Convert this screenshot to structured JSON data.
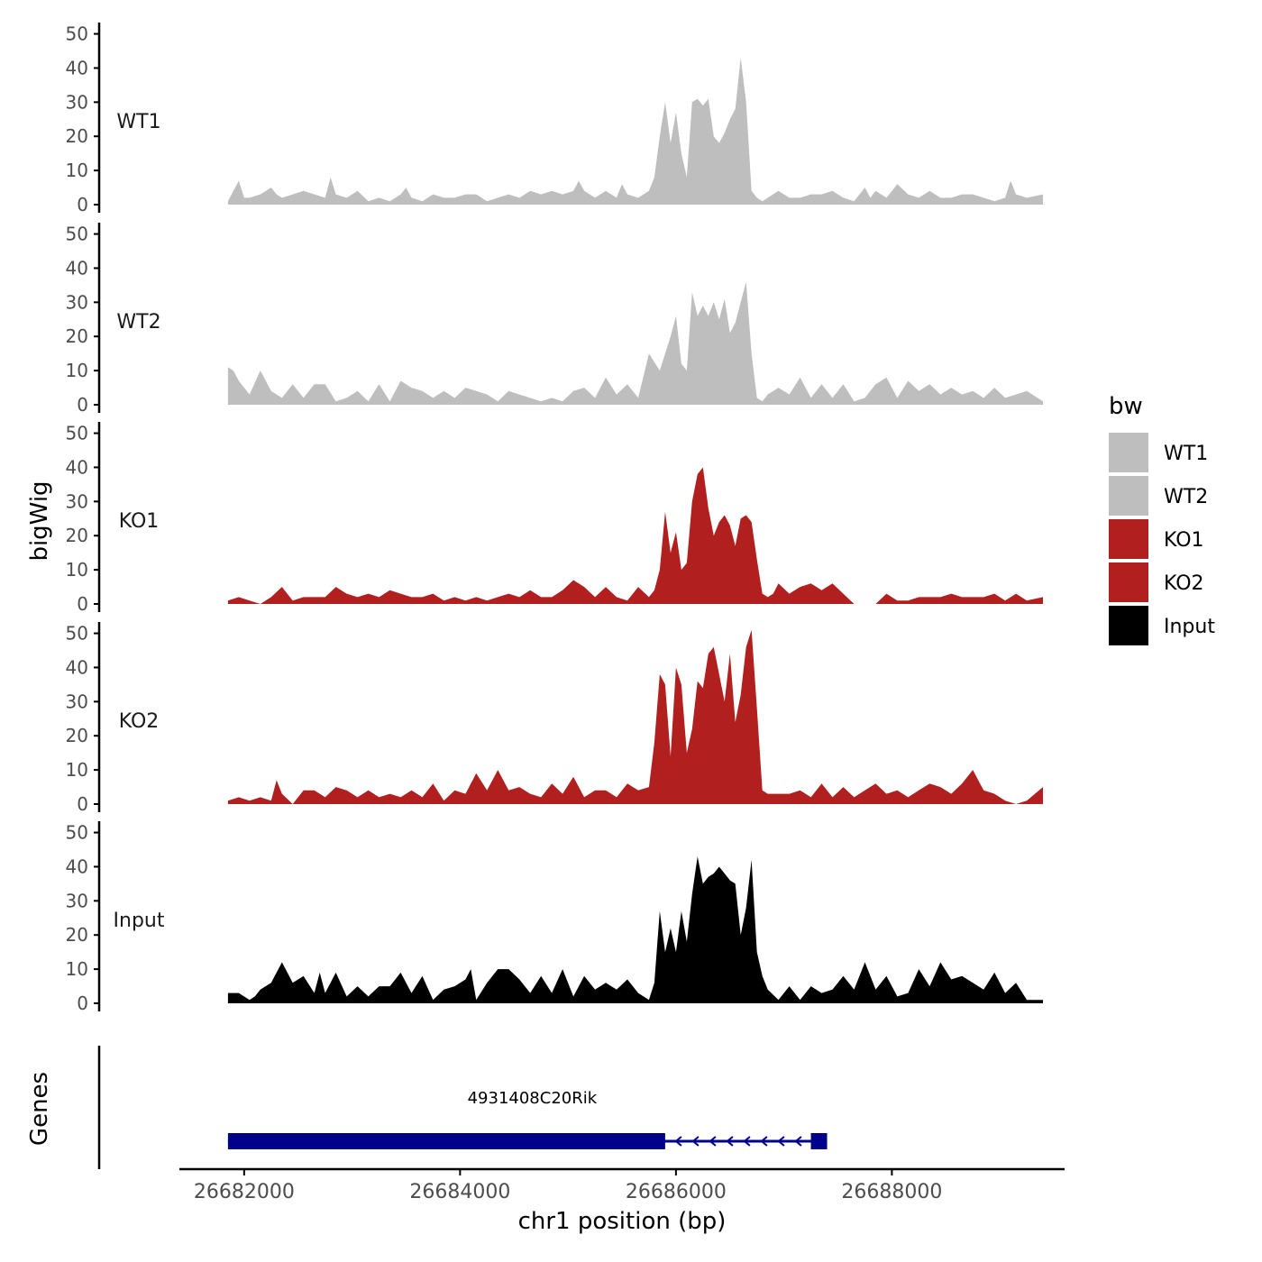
{
  "chart_data": {
    "type": "area",
    "title": "",
    "ylabel": "bigWig",
    "xlabel": "chr1 position (bp)",
    "genes_label": "Genes",
    "xlim": [
      26681400,
      26689600
    ],
    "ylim": [
      0,
      52
    ],
    "yticks": [
      0,
      10,
      20,
      30,
      40,
      50
    ],
    "ytick_labels": [
      "0",
      "10",
      "20",
      "30",
      "40",
      "50"
    ],
    "xticks": [
      26682000,
      26684000,
      26686000,
      26688000
    ],
    "xtick_labels": [
      "26682000",
      "26684000",
      "26686000",
      "26688000"
    ],
    "legend": {
      "title": "bw",
      "position": "right",
      "entries": [
        {
          "label": "WT1",
          "color": "#BEBEBE"
        },
        {
          "label": "WT2",
          "color": "#BEBEBE"
        },
        {
          "label": "KO1",
          "color": "#B21F1F"
        },
        {
          "label": "KO2",
          "color": "#B21F1F"
        },
        {
          "label": "Input",
          "color": "#000000"
        }
      ]
    },
    "series": [
      {
        "name": "WT1",
        "label": "WT1",
        "color": "#BEBEBE",
        "x": [
          26681850,
          26681950,
          26682000,
          26682050,
          26682150,
          26682250,
          26682300,
          26682350,
          26682450,
          26682550,
          26682650,
          26682750,
          26682800,
          26682850,
          26682950,
          26683050,
          26683150,
          26683250,
          26683350,
          26683450,
          26683500,
          26683550,
          26683650,
          26683750,
          26683850,
          26683950,
          26684050,
          26684150,
          26684250,
          26684350,
          26684450,
          26684550,
          26684650,
          26684750,
          26684850,
          26684950,
          26685050,
          26685100,
          26685150,
          26685250,
          26685350,
          26685450,
          26685500,
          26685550,
          26685650,
          26685750,
          26685800,
          26685850,
          26685900,
          26685950,
          26686000,
          26686050,
          26686100,
          26686150,
          26686200,
          26686250,
          26686300,
          26686350,
          26686400,
          26686450,
          26686500,
          26686550,
          26686600,
          26686650,
          26686700,
          26686750,
          26686800,
          26686850,
          26686950,
          26687050,
          26687150,
          26687250,
          26687350,
          26687450,
          26687550,
          26687650,
          26687750,
          26687800,
          26687850,
          26687950,
          26688050,
          26688150,
          26688250,
          26688350,
          26688450,
          26688550,
          26688650,
          26688750,
          26688850,
          26688950,
          26689050,
          26689100,
          26689150,
          26689250,
          26689400
        ],
        "values": [
          1,
          7,
          2,
          2,
          3,
          5,
          3,
          2,
          3,
          4,
          3,
          2,
          8,
          3,
          2,
          4,
          1,
          2,
          1,
          3,
          5,
          2,
          1,
          3,
          2,
          2,
          3,
          3,
          1,
          2,
          3,
          2,
          4,
          3,
          4,
          3,
          4,
          7,
          4,
          2,
          4,
          2,
          6,
          3,
          2,
          4,
          8,
          20,
          30,
          18,
          27,
          15,
          8,
          30,
          31,
          29,
          31,
          20,
          18,
          21,
          25,
          28,
          43,
          30,
          4,
          2,
          1,
          2,
          4,
          2,
          2,
          3,
          3,
          4,
          2,
          1,
          5,
          2,
          4,
          2,
          6,
          3,
          2,
          4,
          2,
          2,
          3,
          3,
          2,
          1,
          2,
          7,
          3,
          2,
          3
        ]
      },
      {
        "name": "WT2",
        "label": "WT2",
        "color": "#BEBEBE",
        "x": [
          26681850,
          26681900,
          26681950,
          26682050,
          26682150,
          26682250,
          26682350,
          26682450,
          26682550,
          26682650,
          26682750,
          26682850,
          26682950,
          26683050,
          26683150,
          26683250,
          26683350,
          26683450,
          26683550,
          26683650,
          26683750,
          26683850,
          26683950,
          26684050,
          26684150,
          26684250,
          26684350,
          26684450,
          26684550,
          26684650,
          26684750,
          26684850,
          26684950,
          26685050,
          26685150,
          26685250,
          26685350,
          26685450,
          26685550,
          26685650,
          26685750,
          26685850,
          26685950,
          26686000,
          26686050,
          26686100,
          26686150,
          26686200,
          26686250,
          26686300,
          26686350,
          26686400,
          26686450,
          26686500,
          26686550,
          26686600,
          26686650,
          26686700,
          26686750,
          26686800,
          26686850,
          26686950,
          26687050,
          26687150,
          26687250,
          26687350,
          26687450,
          26687550,
          26687650,
          26687750,
          26687850,
          26687950,
          26688050,
          26688150,
          26688250,
          26688350,
          26688450,
          26688550,
          26688650,
          26688750,
          26688850,
          26688950,
          26689050,
          26689150,
          26689250,
          26689400
        ],
        "values": [
          11,
          10,
          7,
          3,
          10,
          4,
          2,
          6,
          2,
          6,
          6,
          1,
          2,
          4,
          1,
          6,
          1,
          7,
          5,
          4,
          2,
          4,
          2,
          5,
          4,
          3,
          1,
          4,
          3,
          2,
          1,
          2,
          1,
          4,
          5,
          2,
          8,
          3,
          6,
          2,
          15,
          10,
          20,
          26,
          12,
          10,
          33,
          26,
          29,
          26,
          30,
          25,
          31,
          21,
          24,
          30,
          36,
          15,
          2,
          1,
          3,
          5,
          3,
          8,
          2,
          6,
          2,
          6,
          1,
          2,
          6,
          8,
          2,
          7,
          4,
          6,
          3,
          5,
          3,
          4,
          2,
          5,
          2,
          3,
          4,
          1
        ]
      },
      {
        "name": "KO1",
        "label": "KO1",
        "color": "#B21F1F",
        "x": [
          26681850,
          26681950,
          26682050,
          26682150,
          26682250,
          26682350,
          26682450,
          26682550,
          26682650,
          26682750,
          26682850,
          26682950,
          26683050,
          26683150,
          26683250,
          26683350,
          26683450,
          26683550,
          26683650,
          26683750,
          26683850,
          26683950,
          26684050,
          26684150,
          26684250,
          26684350,
          26684450,
          26684550,
          26684650,
          26684750,
          26684850,
          26684950,
          26685050,
          26685150,
          26685250,
          26685350,
          26685450,
          26685550,
          26685650,
          26685750,
          26685800,
          26685850,
          26685900,
          26685950,
          26686000,
          26686050,
          26686100,
          26686150,
          26686200,
          26686250,
          26686300,
          26686350,
          26686400,
          26686450,
          26686500,
          26686550,
          26686600,
          26686650,
          26686700,
          26686750,
          26686800,
          26686850,
          26686900,
          26686950,
          26687050,
          26687150,
          26687250,
          26687350,
          26687450,
          26687550,
          26687650,
          26687750,
          26687850,
          26687950,
          26688050,
          26688150,
          26688250,
          26688350,
          26688450,
          26688550,
          26688650,
          26688750,
          26688850,
          26688950,
          26689050,
          26689150,
          26689250,
          26689400
        ],
        "values": [
          1,
          2,
          1,
          0,
          2,
          5,
          1,
          2,
          2,
          2,
          5,
          3,
          2,
          3,
          2,
          4,
          3,
          2,
          2,
          3,
          1,
          2,
          1,
          2,
          1,
          2,
          3,
          2,
          4,
          2,
          2,
          4,
          7,
          5,
          2,
          5,
          2,
          1,
          5,
          2,
          4,
          10,
          27,
          15,
          21,
          10,
          12,
          30,
          38,
          40,
          28,
          20,
          24,
          26,
          23,
          17,
          25,
          26,
          24,
          13,
          3,
          2,
          3,
          6,
          3,
          5,
          6,
          4,
          6,
          3,
          0,
          0,
          0,
          3,
          1,
          1,
          2,
          2,
          2,
          3,
          2,
          2,
          2,
          3,
          1,
          3,
          1,
          2
        ]
      },
      {
        "name": "KO2",
        "label": "KO2",
        "color": "#B21F1F",
        "x": [
          26681850,
          26681950,
          26682050,
          26682150,
          26682250,
          26682300,
          26682350,
          26682450,
          26682550,
          26682650,
          26682750,
          26682850,
          26682950,
          26683050,
          26683150,
          26683250,
          26683350,
          26683450,
          26683550,
          26683650,
          26683750,
          26683850,
          26683950,
          26684050,
          26684150,
          26684250,
          26684350,
          26684450,
          26684550,
          26684650,
          26684750,
          26684850,
          26684950,
          26685050,
          26685150,
          26685250,
          26685350,
          26685450,
          26685550,
          26685650,
          26685750,
          26685800,
          26685850,
          26685900,
          26685950,
          26686000,
          26686050,
          26686100,
          26686150,
          26686200,
          26686250,
          26686300,
          26686350,
          26686400,
          26686450,
          26686500,
          26686550,
          26686600,
          26686650,
          26686700,
          26686750,
          26686800,
          26686850,
          26686950,
          26687050,
          26687150,
          26687250,
          26687350,
          26687450,
          26687550,
          26687650,
          26687750,
          26687850,
          26687950,
          26688050,
          26688150,
          26688250,
          26688350,
          26688450,
          26688550,
          26688650,
          26688750,
          26688850,
          26688950,
          26689050,
          26689150,
          26689250,
          26689400
        ],
        "values": [
          1,
          2,
          1,
          2,
          1,
          7,
          3,
          0,
          4,
          4,
          2,
          5,
          4,
          2,
          4,
          2,
          3,
          2,
          4,
          2,
          6,
          1,
          4,
          3,
          9,
          4,
          10,
          4,
          5,
          3,
          2,
          6,
          3,
          8,
          2,
          4,
          4,
          2,
          6,
          4,
          5,
          18,
          38,
          35,
          14,
          40,
          35,
          15,
          22,
          36,
          34,
          44,
          46,
          38,
          30,
          44,
          24,
          32,
          46,
          51,
          28,
          4,
          3,
          3,
          3,
          4,
          2,
          6,
          2,
          5,
          2,
          4,
          6,
          3,
          4,
          2,
          4,
          6,
          5,
          3,
          6,
          10,
          4,
          3,
          1,
          0,
          1,
          5
        ]
      },
      {
        "name": "Input",
        "label": "Input",
        "color": "#000000",
        "x": [
          26681850,
          26681950,
          26682050,
          26682100,
          26682150,
          26682250,
          26682350,
          26682400,
          26682450,
          26682550,
          26682650,
          26682700,
          26682750,
          26682850,
          26682950,
          26683050,
          26683150,
          26683250,
          26683350,
          26683450,
          26683550,
          26683650,
          26683750,
          26683850,
          26683950,
          26684050,
          26684100,
          26684150,
          26684250,
          26684350,
          26684450,
          26684550,
          26684650,
          26684750,
          26684850,
          26684950,
          26685050,
          26685150,
          26685250,
          26685350,
          26685450,
          26685550,
          26685650,
          26685750,
          26685800,
          26685850,
          26685900,
          26685950,
          26686000,
          26686050,
          26686100,
          26686150,
          26686200,
          26686250,
          26686300,
          26686350,
          26686400,
          26686450,
          26686500,
          26686550,
          26686600,
          26686650,
          26686700,
          26686750,
          26686800,
          26686850,
          26686950,
          26687050,
          26687150,
          26687250,
          26687350,
          26687450,
          26687550,
          26687650,
          26687750,
          26687850,
          26687950,
          26688050,
          26688150,
          26688250,
          26688350,
          26688450,
          26688550,
          26688650,
          26688750,
          26688850,
          26688950,
          26689050,
          26689150,
          26689250,
          26689400
        ],
        "values": [
          3,
          3,
          1,
          2,
          4,
          6,
          12,
          9,
          6,
          8,
          3,
          9,
          3,
          9,
          2,
          5,
          2,
          5,
          5,
          9,
          3,
          8,
          1,
          4,
          5,
          7,
          10,
          1,
          6,
          10,
          10,
          7,
          3,
          8,
          3,
          10,
          2,
          8,
          4,
          6,
          4,
          7,
          3,
          1,
          6,
          27,
          15,
          22,
          15,
          27,
          18,
          32,
          43,
          35,
          37,
          38,
          40,
          38,
          36,
          35,
          20,
          28,
          42,
          15,
          8,
          4,
          1,
          5,
          1,
          5,
          3,
          4,
          8,
          4,
          12,
          4,
          8,
          2,
          3,
          10,
          5,
          12,
          7,
          8,
          6,
          4,
          9,
          3,
          6,
          1,
          1
        ]
      }
    ],
    "gene_track": {
      "gene_name": "4931408C20Rik",
      "strand": "-",
      "start": 26681850,
      "end": 26687400,
      "color": "#00008B",
      "exons": [
        [
          26681850,
          26685900
        ],
        [
          26687250,
          26687400
        ]
      ]
    }
  }
}
